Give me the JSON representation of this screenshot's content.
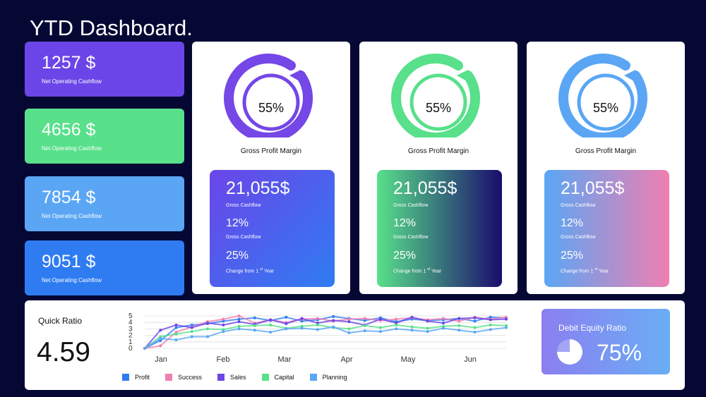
{
  "title": "YTD Dashboard.",
  "stat_cards": [
    {
      "value": "1257 $",
      "label": "Net Operating Cashflow",
      "color": "#6b45e8"
    },
    {
      "value": "4656 $",
      "label": "Net Operating Cashflow",
      "color": "#58e08a"
    },
    {
      "value": "7854 $",
      "label": "Net Operating Cashflow",
      "color": "#5aa6f5"
    },
    {
      "value": "9051 $",
      "label": "Net Operating Cashflow",
      "color": "#2f7cf2"
    }
  ],
  "panels": [
    {
      "gauge_pct": "55%",
      "gauge_label": "Gross Profit Margin",
      "gauge_color": "#7447e6",
      "kpi_value": "21,055$",
      "kpi_label1": "Gross Cashflow",
      "kpi_pct1": "12%",
      "kpi_label2": "Gross Cashflow",
      "kpi_pct2": "25%",
      "kpi_label3": "Change from 1",
      "kpi_sup": "st",
      "kpi_label3b": "Year"
    },
    {
      "gauge_pct": "55%",
      "gauge_label": "Gross Profit Margin",
      "gauge_color": "#58e08a",
      "kpi_value": "21,055$",
      "kpi_label1": "Gross Cashflow",
      "kpi_pct1": "12%",
      "kpi_label2": "Gross Cashflow",
      "kpi_pct2": "25%",
      "kpi_label3": "Change from 1",
      "kpi_sup": "st",
      "kpi_label3b": "Year"
    },
    {
      "gauge_pct": "55%",
      "gauge_label": "Gross Profit Margin",
      "gauge_color": "#5aa6f5",
      "kpi_value": "21,055$",
      "kpi_label1": "Gross Cashflow",
      "kpi_pct1": "12%",
      "kpi_label2": "Gross Cashflow",
      "kpi_pct2": "25%",
      "kpi_label3": "Change from 1",
      "kpi_sup": "st",
      "kpi_label3b": "Year"
    }
  ],
  "quick_ratio": {
    "label": "Quick Ratio",
    "value": "4.59"
  },
  "debt_equity": {
    "label": "Debit Equity Ratio",
    "value": "75%",
    "fraction": 0.75
  },
  "chart_data": {
    "type": "line",
    "categories": [
      "Jan",
      "Feb",
      "Mar",
      "Apr",
      "May",
      "Jun"
    ],
    "ylim": [
      0,
      5
    ],
    "yticks": [
      "5",
      "4",
      "3",
      "2",
      "1",
      "0"
    ],
    "x": [
      0,
      1,
      2,
      3,
      4,
      5,
      6,
      7,
      8,
      9,
      10,
      11,
      12,
      13,
      14,
      15,
      16,
      17,
      18,
      19,
      20,
      21,
      22,
      23
    ],
    "series": [
      {
        "name": "Profit",
        "color": "#2f7cf2",
        "values": [
          0,
          1.2,
          3.2,
          3.6,
          3.8,
          4.2,
          4.5,
          4.7,
          4.3,
          4.8,
          4.2,
          4.4,
          4.9,
          4.6,
          4.3,
          4.7,
          4.1,
          4.5,
          4.3,
          4.4,
          4.6,
          4.2,
          4.8,
          4.7
        ]
      },
      {
        "name": "Success",
        "color": "#f07fb1",
        "values": [
          0,
          0.4,
          2.5,
          3.3,
          4.1,
          4.5,
          5.0,
          3.9,
          4.4,
          4.0,
          4.5,
          4.6,
          4.2,
          4.5,
          4.6,
          4.3,
          4.5,
          4.7,
          4.4,
          4.6,
          4.2,
          4.8,
          4.5,
          4.8
        ]
      },
      {
        "name": "Sales",
        "color": "#6b45e8",
        "values": [
          0,
          2.8,
          3.6,
          3.2,
          3.9,
          3.6,
          4.1,
          3.7,
          4.4,
          3.8,
          4.6,
          3.9,
          4.3,
          4.1,
          3.6,
          4.5,
          3.9,
          4.8,
          4.2,
          3.9,
          4.6,
          4.7,
          4.4,
          4.5
        ]
      },
      {
        "name": "Capital",
        "color": "#58e08a",
        "values": [
          0,
          1.8,
          2.2,
          2.6,
          3.0,
          2.9,
          3.4,
          3.5,
          3.6,
          3.1,
          3.4,
          3.6,
          3.2,
          3.0,
          3.5,
          3.2,
          3.6,
          3.3,
          3.1,
          3.4,
          3.5,
          3.2,
          3.6,
          3.5
        ]
      },
      {
        "name": "Planning",
        "color": "#5aa6f5",
        "values": [
          0,
          1.5,
          1.3,
          1.8,
          1.8,
          2.6,
          3.0,
          2.8,
          2.5,
          3.0,
          3.1,
          2.9,
          3.3,
          2.4,
          2.7,
          2.6,
          3.0,
          2.8,
          2.6,
          3.1,
          2.8,
          2.5,
          2.9,
          3.2
        ]
      }
    ]
  }
}
